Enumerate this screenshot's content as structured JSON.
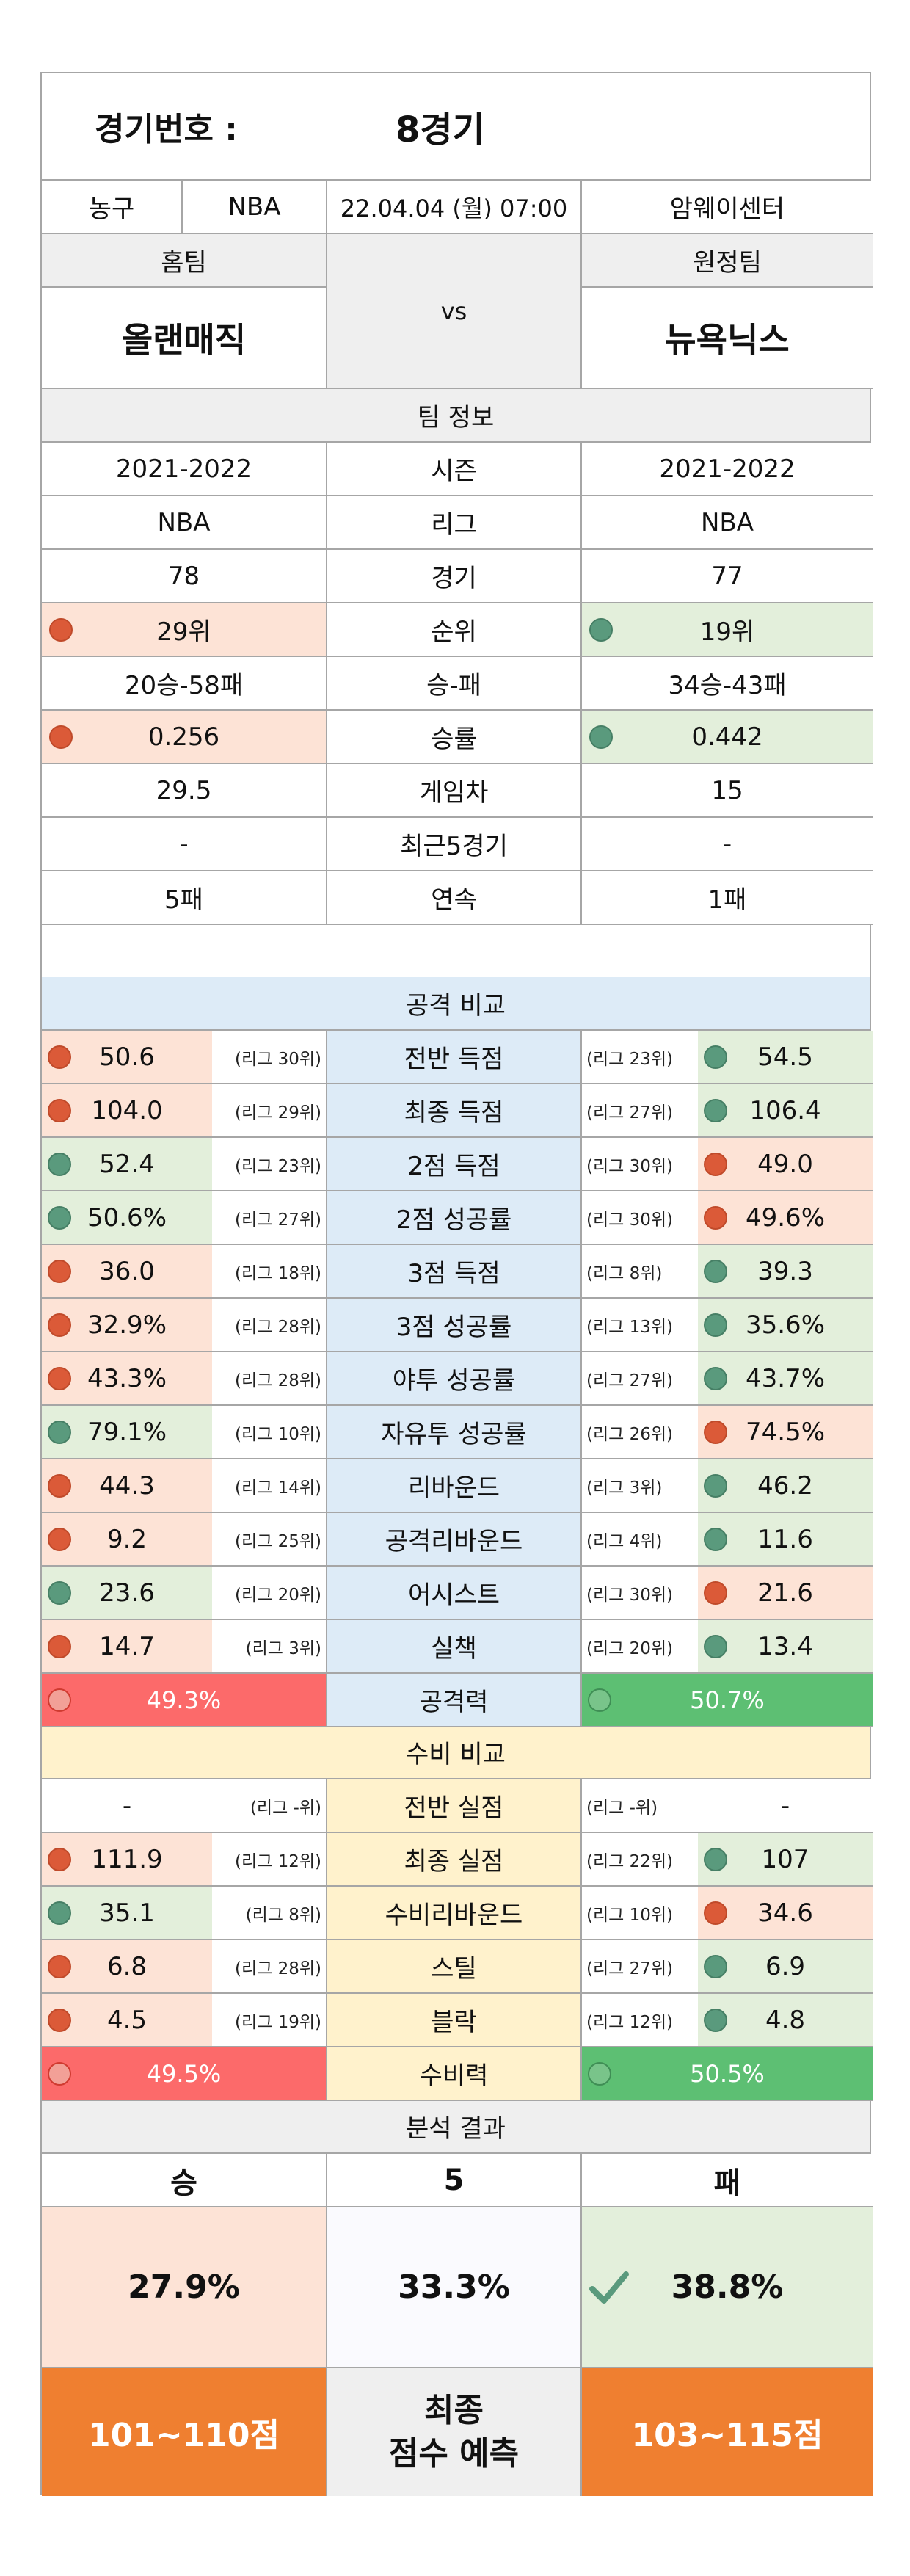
{
  "header": {
    "match_label": "경기번호 :",
    "match_value": "8경기"
  },
  "info": {
    "sport": "농구",
    "league": "NBA",
    "datetime": "22.04.04 (월) 07:00",
    "venue": "암웨이센터"
  },
  "teams": {
    "home_label": "홈팀",
    "away_label": "원정팀",
    "home": "올랜매직",
    "away": "뉴욕닉스",
    "vs": "vs"
  },
  "team_info": {
    "title": "팀 정보",
    "rows": [
      {
        "label": "시즌",
        "home": "2021-2022",
        "away": "2021-2022"
      },
      {
        "label": "리그",
        "home": "NBA",
        "away": "NBA"
      },
      {
        "label": "경기",
        "home": "78",
        "away": "77"
      },
      {
        "label": "순위",
        "home": "29위",
        "away": "19위"
      },
      {
        "label": "승-패",
        "home": "20승-58패",
        "away": "34승-43패"
      },
      {
        "label": "승률",
        "home": "0.256",
        "away": "0.442"
      },
      {
        "label": "게임차",
        "home": "29.5",
        "away": "15"
      },
      {
        "label": "최근5경기",
        "home": "-",
        "away": "-"
      },
      {
        "label": "연속",
        "home": "5패",
        "away": "1패"
      }
    ]
  },
  "attack": {
    "title": "공격 비교",
    "rows": [
      {
        "label": "전반 득점",
        "home": "50.6",
        "home_rank": "(리그 30위)",
        "away": "54.5",
        "away_rank": "(리그 23위)"
      },
      {
        "label": "최종 득점",
        "home": "104.0",
        "home_rank": "(리그 29위)",
        "away": "106.4",
        "away_rank": "(리그 27위)"
      },
      {
        "label": "2점 득점",
        "home": "52.4",
        "home_rank": "(리그 23위)",
        "away": "49.0",
        "away_rank": "(리그 30위)"
      },
      {
        "label": "2점 성공률",
        "home": "50.6%",
        "home_rank": "(리그 27위)",
        "away": "49.6%",
        "away_rank": "(리그 30위)"
      },
      {
        "label": "3점 득점",
        "home": "36.0",
        "home_rank": "(리그 18위)",
        "away": "39.3",
        "away_rank": "(리그 8위)"
      },
      {
        "label": "3점 성공률",
        "home": "32.9%",
        "home_rank": "(리그 28위)",
        "away": "35.6%",
        "away_rank": "(리그 13위)"
      },
      {
        "label": "야투 성공률",
        "home": "43.3%",
        "home_rank": "(리그 28위)",
        "away": "43.7%",
        "away_rank": "(리그 27위)"
      },
      {
        "label": "자유투 성공률",
        "home": "79.1%",
        "home_rank": "(리그 10위)",
        "away": "74.5%",
        "away_rank": "(리그 26위)"
      },
      {
        "label": "리바운드",
        "home": "44.3",
        "home_rank": "(리그 14위)",
        "away": "46.2",
        "away_rank": "(리그 3위)"
      },
      {
        "label": "공격리바운드",
        "home": "9.2",
        "home_rank": "(리그 25위)",
        "away": "11.6",
        "away_rank": "(리그 4위)"
      },
      {
        "label": "어시스트",
        "home": "23.6",
        "home_rank": "(리그 20위)",
        "away": "21.6",
        "away_rank": "(리그 30위)"
      },
      {
        "label": "실책",
        "home": "14.7",
        "home_rank": "(리그 3위)",
        "away": "13.4",
        "away_rank": "(리그 20위)"
      }
    ],
    "total": {
      "label": "공격력",
      "home": "49.3%",
      "away": "50.7%"
    }
  },
  "defense": {
    "title": "수비 비교",
    "rows": [
      {
        "label": "전반 실점",
        "home": "-",
        "home_rank": "(리그 -위)",
        "away": "-",
        "away_rank": "(리그 -위)"
      },
      {
        "label": "최종 실점",
        "home": "111.9",
        "home_rank": "(리그 12위)",
        "away": "107",
        "away_rank": "(리그 22위)"
      },
      {
        "label": "수비리바운드",
        "home": "35.1",
        "home_rank": "(리그 8위)",
        "away": "34.6",
        "away_rank": "(리그 10위)"
      },
      {
        "label": "스틸",
        "home": "6.8",
        "home_rank": "(리그 28위)",
        "away": "6.9",
        "away_rank": "(리그 27위)"
      },
      {
        "label": "블락",
        "home": "4.5",
        "home_rank": "(리그 19위)",
        "away": "4.8",
        "away_rank": "(리그 12위)"
      }
    ],
    "total": {
      "label": "수비력",
      "home": "49.5%",
      "away": "50.5%"
    }
  },
  "result": {
    "title": "분석 결과",
    "win_label": "승",
    "draw_label": "5",
    "lose_label": "패",
    "win_pct": "27.9%",
    "draw_pct": "33.3%",
    "lose_pct": "38.8%",
    "home_score": "101~110점",
    "predict_line1": "최종",
    "predict_line2": "점수 예측",
    "away_score": "103~115점"
  },
  "colors": {
    "home_bad": "#fde3d6",
    "away_good": "#e3efdb",
    "attack_bg": "#ddebf7",
    "defense_bg": "#fff2cc",
    "score_bg": "#ef7f30"
  },
  "icons": {
    "dot_red": "red-circle-icon",
    "dot_green": "green-circle-icon",
    "check": "checkmark-icon"
  }
}
